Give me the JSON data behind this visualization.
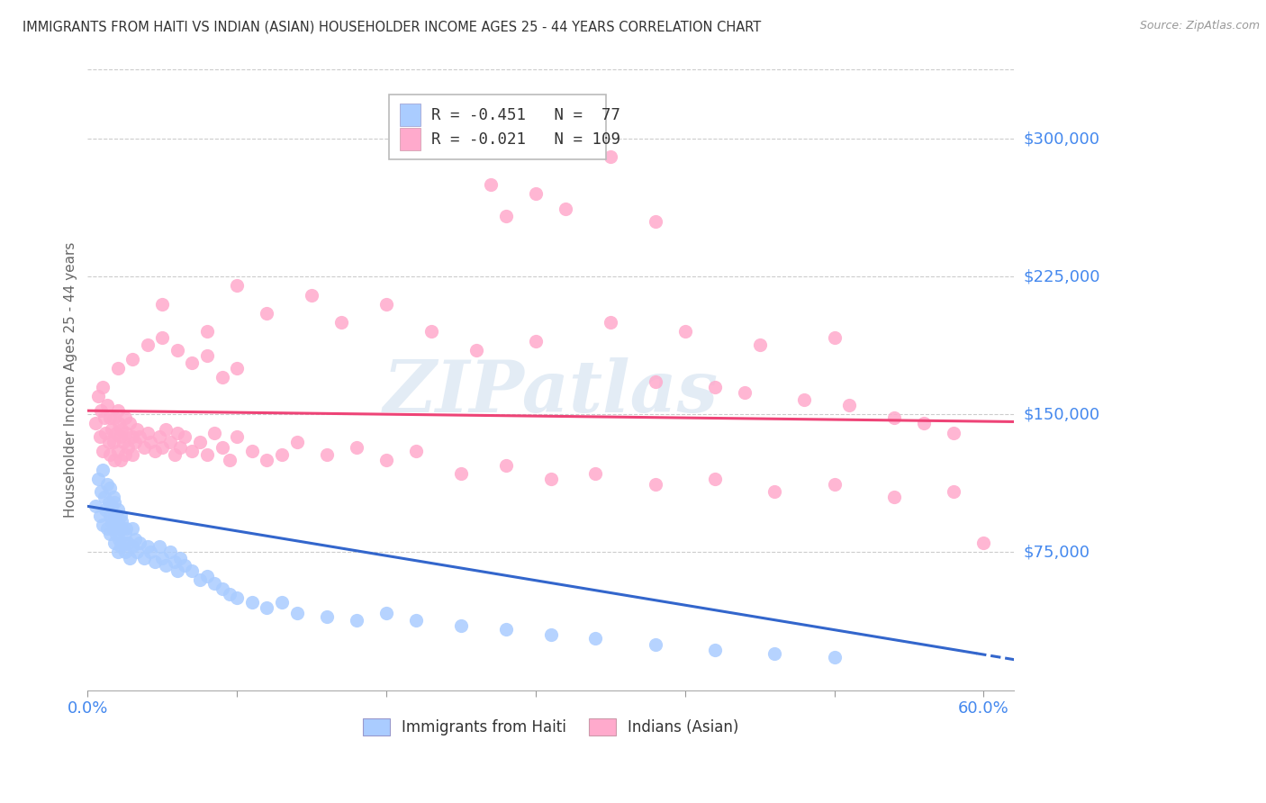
{
  "title": "IMMIGRANTS FROM HAITI VS INDIAN (ASIAN) HOUSEHOLDER INCOME AGES 25 - 44 YEARS CORRELATION CHART",
  "source": "Source: ZipAtlas.com",
  "ylabel": "Householder Income Ages 25 - 44 years",
  "xlim": [
    0.0,
    0.62
  ],
  "ylim": [
    0,
    337500
  ],
  "yticks": [
    75000,
    150000,
    225000,
    300000
  ],
  "ytick_labels": [
    "$75,000",
    "$150,000",
    "$225,000",
    "$300,000"
  ],
  "xticks": [
    0.0,
    0.1,
    0.2,
    0.3,
    0.4,
    0.5,
    0.6
  ],
  "xtick_labels": [
    "0.0%",
    "",
    "",
    "",
    "",
    "",
    "60.0%"
  ],
  "haiti_color": "#aaccff",
  "haiti_edge_color": "#aaccff",
  "indian_color": "#ffaacc",
  "indian_edge_color": "#ffaacc",
  "haiti_line_color": "#3366cc",
  "indian_line_color": "#ee4477",
  "haiti_R": -0.451,
  "haiti_N": 77,
  "indian_R": -0.021,
  "indian_N": 109,
  "watermark": "ZIPatlas",
  "background_color": "#ffffff",
  "grid_color": "#cccccc",
  "axis_label_color": "#4488ee",
  "title_color": "#333333",
  "haiti_scatter_x": [
    0.005,
    0.007,
    0.008,
    0.009,
    0.01,
    0.01,
    0.011,
    0.012,
    0.013,
    0.013,
    0.014,
    0.015,
    0.015,
    0.015,
    0.016,
    0.016,
    0.017,
    0.017,
    0.018,
    0.018,
    0.018,
    0.019,
    0.019,
    0.02,
    0.02,
    0.021,
    0.021,
    0.022,
    0.022,
    0.023,
    0.023,
    0.024,
    0.025,
    0.025,
    0.026,
    0.027,
    0.028,
    0.03,
    0.03,
    0.032,
    0.033,
    0.035,
    0.038,
    0.04,
    0.042,
    0.045,
    0.048,
    0.05,
    0.052,
    0.055,
    0.058,
    0.06,
    0.062,
    0.065,
    0.07,
    0.075,
    0.08,
    0.085,
    0.09,
    0.095,
    0.1,
    0.11,
    0.12,
    0.13,
    0.14,
    0.16,
    0.18,
    0.2,
    0.22,
    0.25,
    0.28,
    0.31,
    0.34,
    0.38,
    0.42,
    0.46,
    0.5
  ],
  "haiti_scatter_y": [
    100000,
    115000,
    95000,
    108000,
    120000,
    90000,
    105000,
    98000,
    112000,
    88000,
    102000,
    95000,
    110000,
    85000,
    100000,
    92000,
    105000,
    88000,
    95000,
    80000,
    102000,
    92000,
    85000,
    98000,
    75000,
    90000,
    82000,
    95000,
    78000,
    88000,
    92000,
    80000,
    85000,
    75000,
    88000,
    80000,
    72000,
    88000,
    78000,
    82000,
    75000,
    80000,
    72000,
    78000,
    75000,
    70000,
    78000,
    72000,
    68000,
    75000,
    70000,
    65000,
    72000,
    68000,
    65000,
    60000,
    62000,
    58000,
    55000,
    52000,
    50000,
    48000,
    45000,
    48000,
    42000,
    40000,
    38000,
    42000,
    38000,
    35000,
    33000,
    30000,
    28000,
    25000,
    22000,
    20000,
    18000
  ],
  "indian_scatter_x": [
    0.005,
    0.007,
    0.008,
    0.009,
    0.01,
    0.01,
    0.011,
    0.012,
    0.013,
    0.014,
    0.015,
    0.015,
    0.016,
    0.017,
    0.018,
    0.018,
    0.019,
    0.02,
    0.02,
    0.021,
    0.022,
    0.022,
    0.023,
    0.024,
    0.025,
    0.025,
    0.026,
    0.027,
    0.028,
    0.03,
    0.03,
    0.032,
    0.033,
    0.035,
    0.038,
    0.04,
    0.042,
    0.045,
    0.048,
    0.05,
    0.052,
    0.055,
    0.058,
    0.06,
    0.062,
    0.065,
    0.07,
    0.075,
    0.08,
    0.085,
    0.09,
    0.095,
    0.1,
    0.11,
    0.12,
    0.13,
    0.14,
    0.16,
    0.18,
    0.2,
    0.22,
    0.25,
    0.28,
    0.31,
    0.34,
    0.38,
    0.42,
    0.46,
    0.5,
    0.54,
    0.58,
    0.05,
    0.08,
    0.1,
    0.12,
    0.15,
    0.17,
    0.2,
    0.23,
    0.26,
    0.3,
    0.35,
    0.4,
    0.45,
    0.5,
    0.3,
    0.28,
    0.32,
    0.38,
    0.35,
    0.27,
    0.42,
    0.38,
    0.44,
    0.48,
    0.51,
    0.54,
    0.56,
    0.58,
    0.6,
    0.02,
    0.03,
    0.04,
    0.05,
    0.06,
    0.07,
    0.08,
    0.09,
    0.1
  ],
  "indian_scatter_y": [
    145000,
    160000,
    138000,
    152000,
    165000,
    130000,
    148000,
    140000,
    155000,
    135000,
    148000,
    128000,
    142000,
    135000,
    148000,
    125000,
    140000,
    152000,
    130000,
    145000,
    138000,
    125000,
    142000,
    135000,
    148000,
    128000,
    140000,
    132000,
    145000,
    138000,
    128000,
    135000,
    142000,
    138000,
    132000,
    140000,
    135000,
    130000,
    138000,
    132000,
    142000,
    135000,
    128000,
    140000,
    132000,
    138000,
    130000,
    135000,
    128000,
    140000,
    132000,
    125000,
    138000,
    130000,
    125000,
    128000,
    135000,
    128000,
    132000,
    125000,
    130000,
    118000,
    122000,
    115000,
    118000,
    112000,
    115000,
    108000,
    112000,
    105000,
    108000,
    210000,
    195000,
    220000,
    205000,
    215000,
    200000,
    210000,
    195000,
    185000,
    190000,
    200000,
    195000,
    188000,
    192000,
    270000,
    258000,
    262000,
    255000,
    290000,
    275000,
    165000,
    168000,
    162000,
    158000,
    155000,
    148000,
    145000,
    140000,
    80000,
    175000,
    180000,
    188000,
    192000,
    185000,
    178000,
    182000,
    170000,
    175000
  ]
}
